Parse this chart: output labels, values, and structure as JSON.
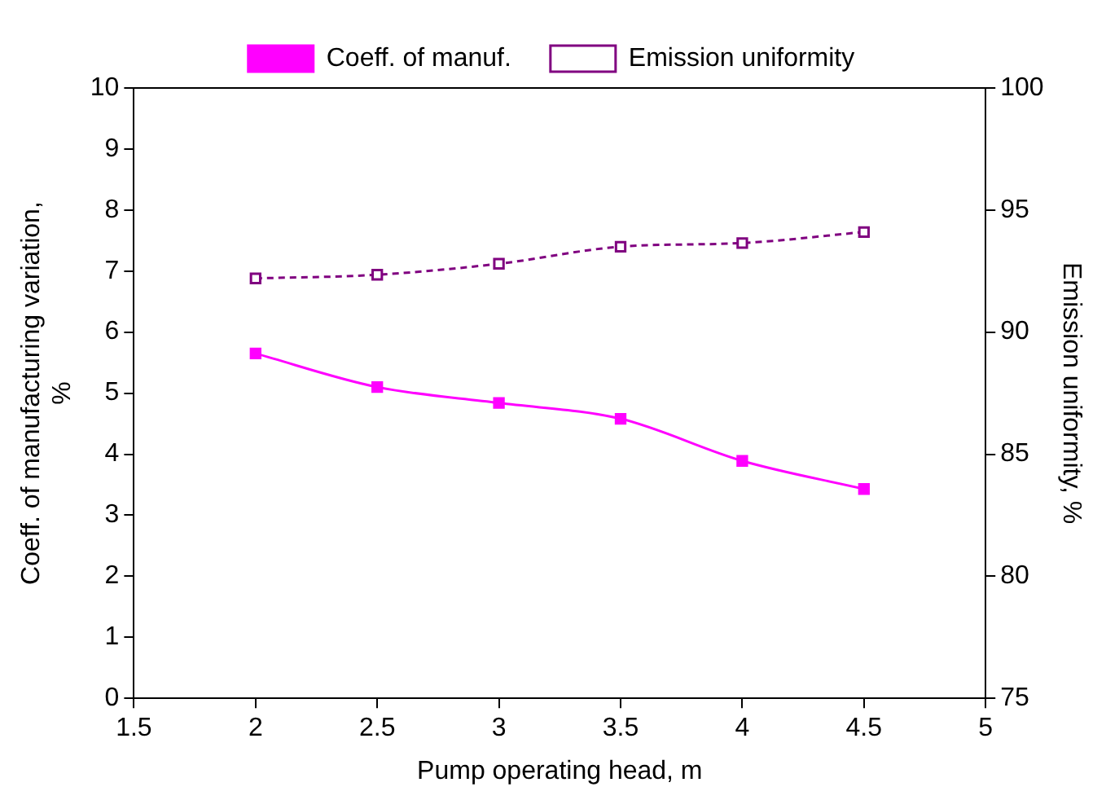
{
  "chart_data": {
    "type": "line",
    "xlabel": "Pump operating head, m",
    "ylabel": "Coeff. of manufacturing variation, %",
    "y2label": "Emission uniformity, %",
    "x": [
      2,
      2.5,
      3,
      3.5,
      4,
      4.5
    ],
    "series": [
      {
        "name": "Coeff. of manuf.",
        "color": "#ff00ff",
        "values": [
          5.65,
          5.1,
          4.84,
          4.58,
          3.89,
          3.43
        ],
        "line_style": "solid",
        "marker": "square"
      },
      {
        "name": "Emission uniformity",
        "color": "#800080",
        "values": [
          92.2,
          92.35,
          92.8,
          93.5,
          93.65,
          94.1
        ],
        "axis": "y2",
        "line_style": "dashed",
        "marker": "square"
      }
    ],
    "xlim": [
      1.5,
      5
    ],
    "xticks": [
      1.5,
      2,
      2.5,
      3,
      3.5,
      4,
      4.5,
      5
    ],
    "ylim": [
      0,
      10
    ],
    "yticks": [
      0,
      1,
      2,
      3,
      4,
      5,
      6,
      7,
      8,
      9,
      10
    ],
    "y2lim": [
      75,
      100
    ],
    "y2ticks": [
      75,
      80,
      85,
      90,
      95,
      100
    ],
    "grid": false,
    "legend": "top"
  }
}
